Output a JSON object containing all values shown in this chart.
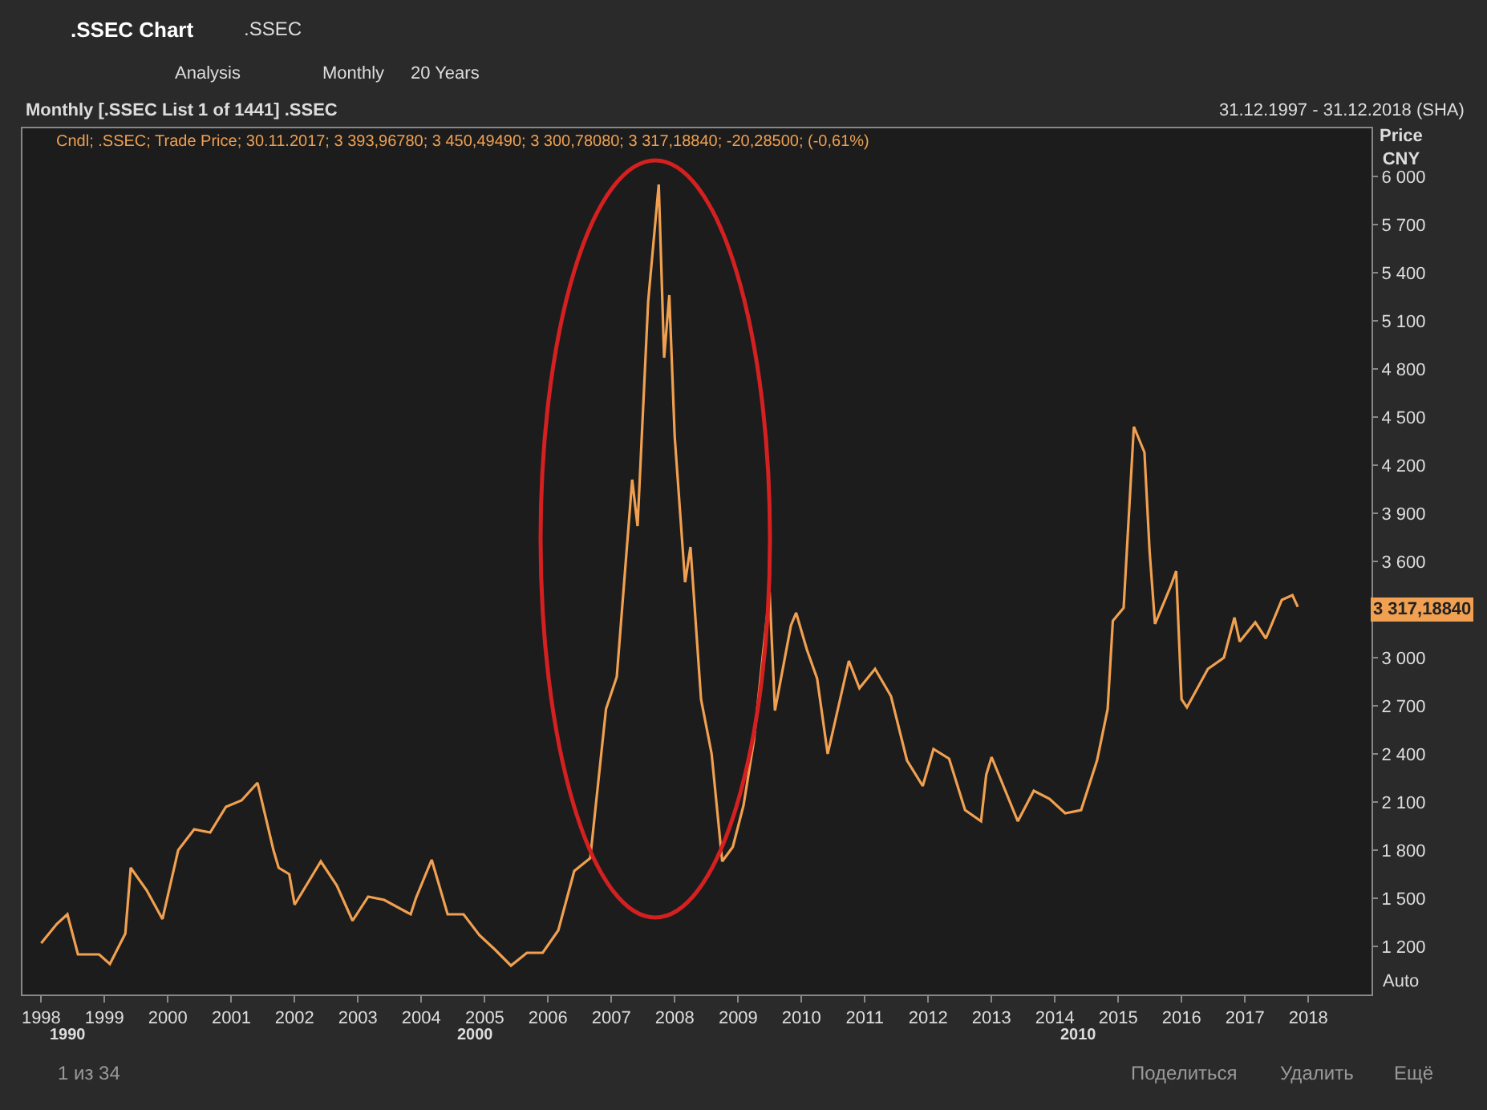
{
  "chart_data": {
    "type": "line",
    "title": "Monthly [.SSEC List 1 of 1441] .SSEC",
    "subtitle": "31.12.1997 - 31.12.2018 (SHA)",
    "ylabel": "Price CNY",
    "x": [
      "1998-01",
      "1998-04",
      "1998-06",
      "1998-08",
      "1998-12",
      "1999-02",
      "1999-05",
      "1999-06",
      "1999-09",
      "1999-12",
      "2000-03",
      "2000-06",
      "2000-09",
      "2000-12",
      "2001-03",
      "2001-06",
      "2001-09",
      "2001-10",
      "2001-12",
      "2002-01",
      "2002-06",
      "2002-09",
      "2002-12",
      "2003-03",
      "2003-06",
      "2003-11",
      "2003-12",
      "2004-03",
      "2004-06",
      "2004-09",
      "2004-12",
      "2005-03",
      "2005-06",
      "2005-09",
      "2005-12",
      "2006-03",
      "2006-06",
      "2006-09",
      "2006-12",
      "2007-02",
      "2007-05",
      "2007-06",
      "2007-08",
      "2007-10",
      "2007-11",
      "2007-12",
      "2008-01",
      "2008-03",
      "2008-04",
      "2008-06",
      "2008-08",
      "2008-10",
      "2008-12",
      "2009-02",
      "2009-04",
      "2009-07",
      "2009-08",
      "2009-11",
      "2009-12",
      "2010-02",
      "2010-04",
      "2010-06",
      "2010-10",
      "2010-12",
      "2011-03",
      "2011-06",
      "2011-09",
      "2011-12",
      "2012-02",
      "2012-05",
      "2012-08",
      "2012-11",
      "2012-12",
      "2013-01",
      "2013-06",
      "2013-09",
      "2013-12",
      "2014-03",
      "2014-06",
      "2014-09",
      "2014-11",
      "2014-12",
      "2015-02",
      "2015-04",
      "2015-06",
      "2015-07",
      "2015-08",
      "2015-11",
      "2015-12",
      "2016-01",
      "2016-02",
      "2016-06",
      "2016-09",
      "2016-11",
      "2016-12",
      "2017-03",
      "2017-05",
      "2017-08",
      "2017-10",
      "2017-11"
    ],
    "series": [
      {
        "color": "#f0a050",
        "values": [
          1220,
          1340,
          1400,
          1150,
          1150,
          1090,
          1280,
          1690,
          1550,
          1370,
          1800,
          1930,
          1910,
          2070,
          2110,
          2220,
          1800,
          1690,
          1650,
          1460,
          1730,
          1580,
          1360,
          1510,
          1490,
          1400,
          1500,
          1740,
          1400,
          1400,
          1270,
          1180,
          1080,
          1160,
          1160,
          1300,
          1670,
          1750,
          2680,
          2880,
          4110,
          3820,
          5220,
          5950,
          4870,
          5260,
          4380,
          3470,
          3690,
          2740,
          2400,
          1730,
          1820,
          2080,
          2480,
          3410,
          2670,
          3200,
          3280,
          3050,
          2870,
          2400,
          2980,
          2810,
          2930,
          2760,
          2360,
          2200,
          2430,
          2370,
          2050,
          1980,
          2270,
          2380,
          1980,
          2170,
          2120,
          2030,
          2050,
          2360,
          2680,
          3230,
          3310,
          4440,
          4280,
          3660,
          3210,
          3450,
          3540,
          2740,
          2690,
          2930,
          3000,
          3250,
          3100,
          3220,
          3120,
          3360,
          3390,
          3317.1884
        ]
      }
    ],
    "xlim": [
      "1997-09-15",
      "2018-12-31"
    ],
    "xticks": [
      {
        "value": "1998",
        "label": "1998"
      },
      {
        "value": "1999",
        "label": "1999"
      },
      {
        "value": "2000",
        "label": "2000"
      },
      {
        "value": "2001",
        "label": "2001"
      },
      {
        "value": "2002",
        "label": "2002"
      },
      {
        "value": "2003",
        "label": "2003"
      },
      {
        "value": "2004",
        "label": "2004"
      },
      {
        "value": "2005",
        "label": "2005"
      },
      {
        "value": "2006",
        "label": "2006"
      },
      {
        "value": "2007",
        "label": "2007"
      },
      {
        "value": "2008",
        "label": "2008"
      },
      {
        "value": "2009",
        "label": "2009"
      },
      {
        "value": "2010",
        "label": "2010"
      },
      {
        "value": "2011",
        "label": "2011"
      },
      {
        "value": "2012",
        "label": "2012"
      },
      {
        "value": "2013",
        "label": "2013"
      },
      {
        "value": "2014",
        "label": "2014"
      },
      {
        "value": "2015",
        "label": "2015"
      },
      {
        "value": "2016",
        "label": "2016"
      },
      {
        "value": "2017",
        "label": "2017"
      },
      {
        "value": "2018",
        "label": "2018"
      }
    ],
    "ylim": [
      900,
      6300
    ],
    "yticks": [
      {
        "value": 1200,
        "label": "1 200"
      },
      {
        "value": 1500,
        "label": "1 500"
      },
      {
        "value": 1800,
        "label": "1 800"
      },
      {
        "value": 2100,
        "label": "2 100"
      },
      {
        "value": 2400,
        "label": "2 400"
      },
      {
        "value": 2700,
        "label": "2 700"
      },
      {
        "value": 3000,
        "label": "3 000"
      },
      {
        "value": 3600,
        "label": "3 600"
      },
      {
        "value": 3900,
        "label": "3 900"
      },
      {
        "value": 4200,
        "label": "4 200"
      },
      {
        "value": 4500,
        "label": "4 500"
      },
      {
        "value": 4800,
        "label": "4 800"
      },
      {
        "value": 5100,
        "label": "5 100"
      },
      {
        "value": 5400,
        "label": "5 400"
      },
      {
        "value": 5700,
        "label": "5 700"
      },
      {
        "value": 6000,
        "label": "6 000"
      }
    ],
    "grid": false,
    "marker": "none",
    "line_style": "solid",
    "annotations": [
      ".SSEC Chart",
      ".SSEC",
      "Analysis",
      "Monthly",
      "20 Years",
      "Cndl; .SSEC; Trade Price; 30.11.2017; 3 393,96780; 3 450,49490; 3 300,78080; 3 317,18840; -20,28500; (-0,61%)",
      "Auto",
      "1990",
      "2000",
      "2010",
      "1 из 34",
      "Поделиться",
      "Удалить",
      "Ещё",
      "3 317,18840"
    ]
  }
}
